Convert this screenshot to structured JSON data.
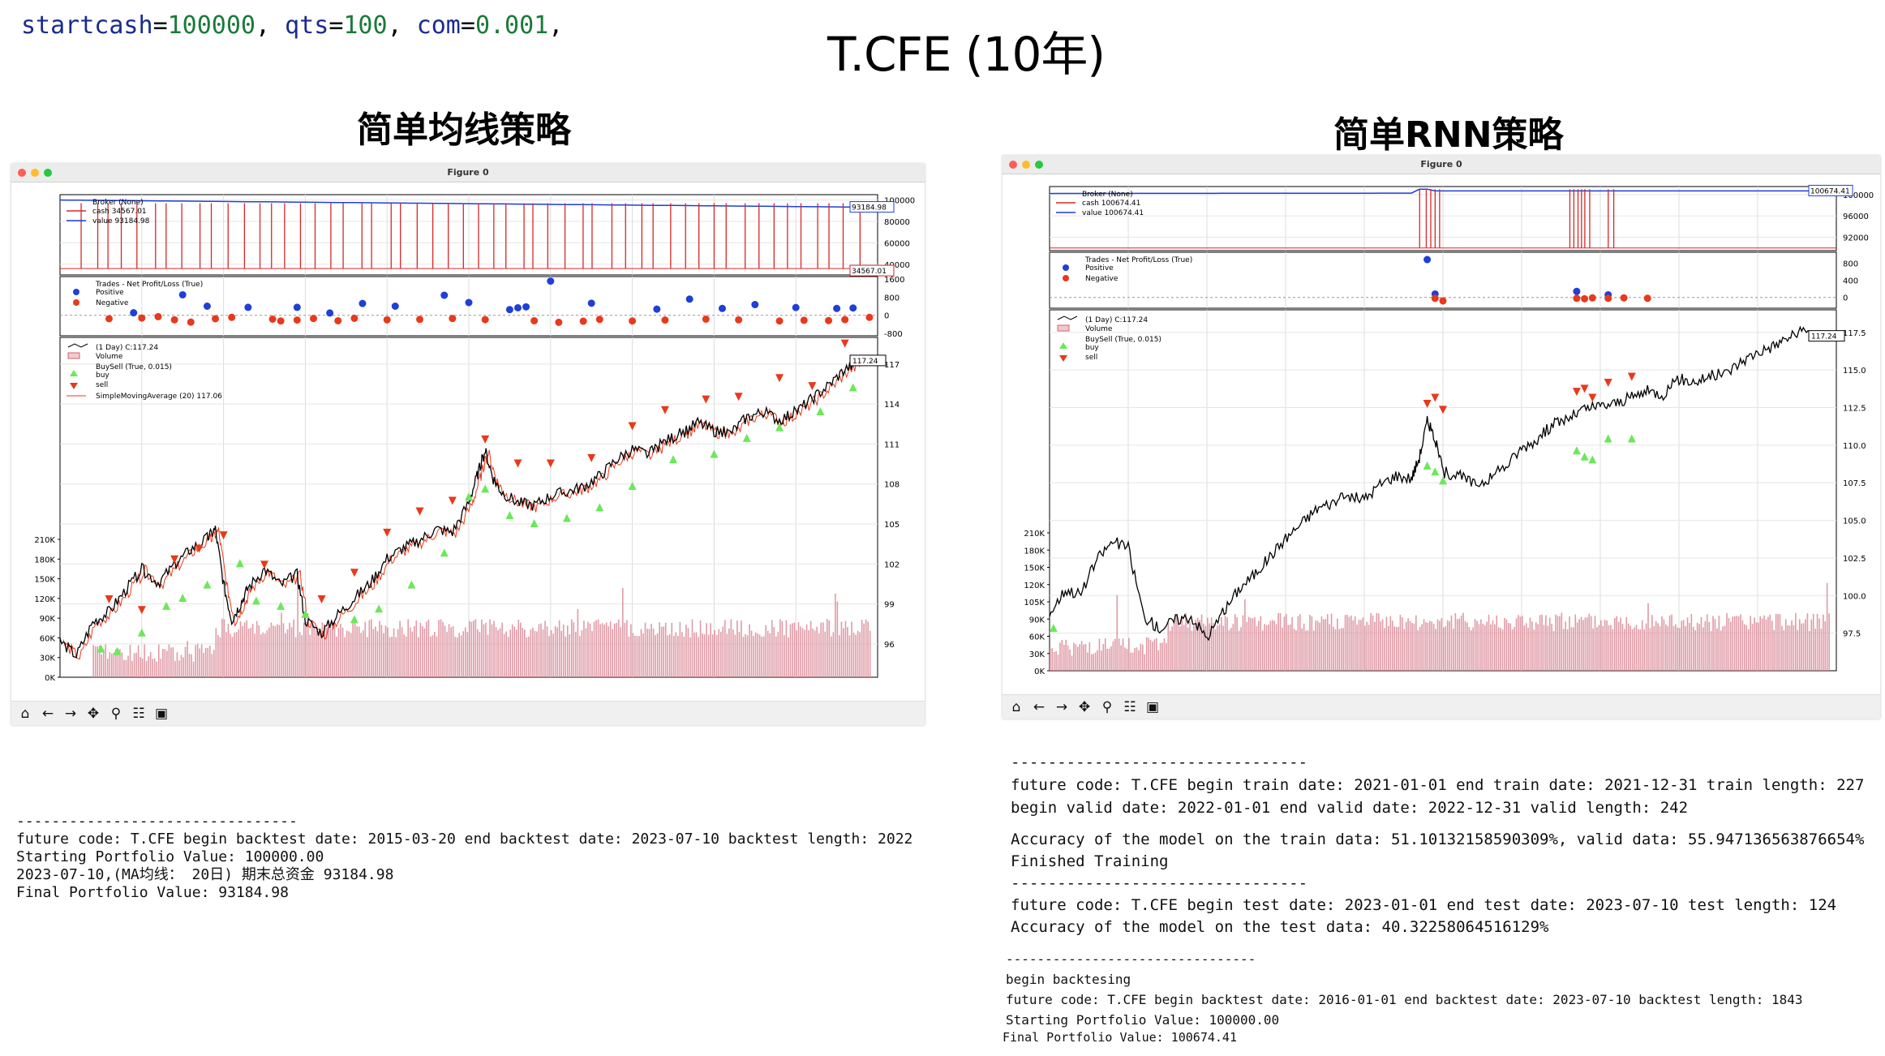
{
  "header": {
    "params": [
      {
        "key": "startcash",
        "value": "100000"
      },
      {
        "key": "qts",
        "value": "100"
      },
      {
        "key": "com",
        "value": "0.001"
      }
    ],
    "title": "T.CFE (10年)"
  },
  "left": {
    "heading": "简单均线策略",
    "window_title": "Figure 0",
    "console": [
      "--------------------------------",
      "future code: T.CFE begin backtest date: 2015-03-20 end backtest date: 2023-07-10 backtest length: 2022",
      "Starting Portfolio Value: 100000.00",
      "2023-07-10,(MA均线： 20日) 期末总资金 93184.98",
      "Final Portfolio Value: 93184.98"
    ]
  },
  "right": {
    "heading": "简单RNN策略",
    "window_title": "Figure 0",
    "console1": [
      "--------------------------------",
      "future code: T.CFE begin train date: 2021-01-01 end train date: 2021-12-31 train length: 227",
      "begin valid date: 2022-01-01 end valid date: 2022-12-31 valid length: 242"
    ],
    "console2": [
      "Accuracy of the model on the train data: 51.10132158590309%, valid data: 55.947136563876654%",
      "Finished Training",
      "--------------------------------",
      "future code: T.CFE begin test date: 2023-01-01 end test date: 2023-07-10 test length: 124",
      "Accuracy of the model on the test data: 40.32258064516129%"
    ],
    "console3": [
      "--------------------------------",
      "begin backtesing",
      "future code: T.CFE begin backtest date: 2016-01-01 end backtest date: 2023-07-10 backtest length: 1843",
      "Starting Portfolio Value: 100000.00"
    ],
    "console4": "Final Portfolio Value: 100674.41"
  },
  "toolbar_icons": [
    "home-icon",
    "back-arrow-icon",
    "forward-arrow-icon",
    "pan-icon",
    "zoom-icon",
    "configure-icon",
    "save-icon"
  ],
  "toolbar_glyphs": [
    "⌂",
    "←",
    "→",
    "✥",
    "⚲",
    "☷",
    "▣"
  ],
  "colors": {
    "cash": "#d62728",
    "value": "#1f3fd6",
    "positive": "#1f3fd6",
    "negative": "#e8391c",
    "buy": "#6be85a",
    "sell": "#e8391c",
    "price": "#000000",
    "volume": "#d98a96",
    "sma": "#e8391c"
  },
  "chart_data": [
    {
      "type": "line",
      "name": "left-backtrader-figure",
      "broker": {
        "legend": [
          "Broker (None)",
          "cash 34567.01",
          "value 93184.98"
        ],
        "yticks": [
          "100000",
          "80000",
          "60000",
          "40000"
        ],
        "ylim": [
          30000,
          105000
        ],
        "value_end_label": "93184.98",
        "cash_end_label": "34567.01"
      },
      "trades": {
        "legend": [
          "Trades - Net Profit/Loss (True)",
          "Positive",
          "Negative"
        ],
        "yticks": [
          "1600",
          "800",
          "0",
          "-800"
        ],
        "ylim": [
          -900,
          1700
        ],
        "positive": [
          [
            0.09,
            110
          ],
          [
            0.15,
            900
          ],
          [
            0.18,
            400
          ],
          [
            0.23,
            350
          ],
          [
            0.29,
            350
          ],
          [
            0.33,
            100
          ],
          [
            0.37,
            520
          ],
          [
            0.41,
            400
          ],
          [
            0.47,
            880
          ],
          [
            0.5,
            560
          ],
          [
            0.55,
            250
          ],
          [
            0.56,
            330
          ],
          [
            0.57,
            370
          ],
          [
            0.6,
            1500
          ],
          [
            0.65,
            530
          ],
          [
            0.73,
            270
          ],
          [
            0.77,
            710
          ],
          [
            0.81,
            300
          ],
          [
            0.85,
            470
          ],
          [
            0.9,
            340
          ],
          [
            0.95,
            300
          ],
          [
            0.97,
            320
          ]
        ],
        "negative": [
          [
            0.06,
            -150
          ],
          [
            0.1,
            -120
          ],
          [
            0.12,
            -60
          ],
          [
            0.14,
            -200
          ],
          [
            0.16,
            -300
          ],
          [
            0.19,
            -150
          ],
          [
            0.21,
            -90
          ],
          [
            0.26,
            -170
          ],
          [
            0.27,
            -250
          ],
          [
            0.29,
            -210
          ],
          [
            0.31,
            -140
          ],
          [
            0.34,
            -240
          ],
          [
            0.36,
            -130
          ],
          [
            0.4,
            -200
          ],
          [
            0.44,
            -180
          ],
          [
            0.48,
            -140
          ],
          [
            0.52,
            -190
          ],
          [
            0.58,
            -240
          ],
          [
            0.61,
            -310
          ],
          [
            0.64,
            -260
          ],
          [
            0.66,
            -180
          ],
          [
            0.7,
            -250
          ],
          [
            0.74,
            -210
          ],
          [
            0.79,
            -170
          ],
          [
            0.83,
            -200
          ],
          [
            0.88,
            -250
          ],
          [
            0.91,
            -220
          ],
          [
            0.94,
            -230
          ],
          [
            0.96,
            -190
          ],
          [
            0.99,
            -90
          ]
        ]
      },
      "price": {
        "legend": [
          "(1 Day) C:117.24",
          "Volume",
          "BuySell (True, 0.015)",
          "buy",
          "sell",
          "SimpleMovingAverage (20) 117.06"
        ],
        "yticks_right": [
          "117",
          "114",
          "111",
          "108",
          "105",
          "102",
          "99",
          "96"
        ],
        "yticks_left": [
          "210K",
          "180K",
          "150K",
          "120K",
          "90K",
          "60K",
          "30K",
          "0K"
        ],
        "ylim": [
          93.5,
          119
        ],
        "last_label": "117.24",
        "close_path": [
          [
            0,
            96.2
          ],
          [
            0.02,
            95.1
          ],
          [
            0.04,
            97.6
          ],
          [
            0.06,
            98.4
          ],
          [
            0.08,
            100
          ],
          [
            0.1,
            101.6
          ],
          [
            0.12,
            100.6
          ],
          [
            0.14,
            101.9
          ],
          [
            0.16,
            103.1
          ],
          [
            0.18,
            103.9
          ],
          [
            0.19,
            104.6
          ],
          [
            0.2,
            100.5
          ],
          [
            0.21,
            97.8
          ],
          [
            0.22,
            98.9
          ],
          [
            0.23,
            100.2
          ],
          [
            0.25,
            101.6
          ],
          [
            0.27,
            100.4
          ],
          [
            0.29,
            101.2
          ],
          [
            0.3,
            97.8
          ],
          [
            0.32,
            96.8
          ],
          [
            0.34,
            98.2
          ],
          [
            0.36,
            99.4
          ],
          [
            0.38,
            100.6
          ],
          [
            0.4,
            102.4
          ],
          [
            0.42,
            103.2
          ],
          [
            0.44,
            103.8
          ],
          [
            0.46,
            104.6
          ],
          [
            0.48,
            104.4
          ],
          [
            0.5,
            106.6
          ],
          [
            0.51,
            108.6
          ],
          [
            0.52,
            110.5
          ],
          [
            0.53,
            108.4
          ],
          [
            0.54,
            107.4
          ],
          [
            0.56,
            106.6
          ],
          [
            0.58,
            106.4
          ],
          [
            0.6,
            107.1
          ],
          [
            0.62,
            107.4
          ],
          [
            0.64,
            107.8
          ],
          [
            0.66,
            108.6
          ],
          [
            0.68,
            109.8
          ],
          [
            0.7,
            110.6
          ],
          [
            0.72,
            110.2
          ],
          [
            0.74,
            111.2
          ],
          [
            0.76,
            111.8
          ],
          [
            0.78,
            112.6
          ],
          [
            0.8,
            112
          ],
          [
            0.82,
            111.8
          ],
          [
            0.84,
            113
          ],
          [
            0.86,
            113.4
          ],
          [
            0.88,
            112.8
          ],
          [
            0.9,
            113.4
          ],
          [
            0.92,
            114.4
          ],
          [
            0.94,
            115.4
          ],
          [
            0.96,
            116.6
          ],
          [
            0.98,
            117.24
          ]
        ]
      }
    },
    {
      "type": "line",
      "name": "right-backtrader-figure",
      "broker": {
        "legend": [
          "Broker (None)",
          "cash 100674.41",
          "value 100674.41"
        ],
        "yticks": [
          "100000",
          "96000",
          "92000"
        ],
        "ylim": [
          89500,
          101500
        ],
        "value_end_label": "100674.41"
      },
      "trades": {
        "legend": [
          "Trades - Net Profit/Loss (True)",
          "Positive",
          "Negative"
        ],
        "yticks": [
          "800",
          "400",
          "0"
        ],
        "ylim": [
          -250,
          1050
        ],
        "positive": [
          [
            0.48,
            880
          ],
          [
            0.49,
            80
          ],
          [
            0.67,
            140
          ],
          [
            0.71,
            60
          ]
        ],
        "negative": [
          [
            0.49,
            -20
          ],
          [
            0.5,
            -80
          ],
          [
            0.67,
            -20
          ],
          [
            0.68,
            -30
          ],
          [
            0.69,
            -10
          ],
          [
            0.71,
            -20
          ],
          [
            0.73,
            -10
          ],
          [
            0.76,
            -20
          ]
        ]
      },
      "price": {
        "legend": [
          "(1 Day) C:117.24",
          "Volume",
          "BuySell (True, 0.015)",
          "buy",
          "sell"
        ],
        "yticks_right": [
          "117.5",
          "115.0",
          "112.5",
          "110.0",
          "107.5",
          "105.0",
          "102.5",
          "100.0",
          "97.5"
        ],
        "yticks_left": [
          "210K",
          "180K",
          "150K",
          "120K",
          "105K",
          "90K",
          "60K",
          "30K",
          "0K"
        ],
        "ylim": [
          95,
          119
        ],
        "last_label": "117.24",
        "close_path": [
          [
            0,
            98.8
          ],
          [
            0.02,
            100.4
          ],
          [
            0.04,
            100.1
          ],
          [
            0.06,
            102.4
          ],
          [
            0.08,
            103.6
          ],
          [
            0.1,
            103.2
          ],
          [
            0.12,
            98.6
          ],
          [
            0.14,
            97.8
          ],
          [
            0.16,
            98.4
          ],
          [
            0.18,
            98.6
          ],
          [
            0.2,
            97.2
          ],
          [
            0.22,
            98.8
          ],
          [
            0.24,
            100.4
          ],
          [
            0.26,
            101.4
          ],
          [
            0.28,
            102.6
          ],
          [
            0.3,
            103.8
          ],
          [
            0.32,
            104.8
          ],
          [
            0.34,
            105.8
          ],
          [
            0.36,
            106.2
          ],
          [
            0.38,
            106.6
          ],
          [
            0.4,
            106.4
          ],
          [
            0.42,
            107.4
          ],
          [
            0.44,
            108
          ],
          [
            0.46,
            107.8
          ],
          [
            0.47,
            109.2
          ],
          [
            0.48,
            111.6
          ],
          [
            0.49,
            110.4
          ],
          [
            0.5,
            108.2
          ],
          [
            0.52,
            108
          ],
          [
            0.54,
            107.4
          ],
          [
            0.56,
            107.8
          ],
          [
            0.58,
            108.6
          ],
          [
            0.6,
            109.8
          ],
          [
            0.62,
            110.4
          ],
          [
            0.64,
            111.4
          ],
          [
            0.66,
            111.8
          ],
          [
            0.68,
            112.4
          ],
          [
            0.7,
            112.6
          ],
          [
            0.72,
            112.8
          ],
          [
            0.74,
            113.2
          ],
          [
            0.76,
            113.6
          ],
          [
            0.78,
            113.4
          ],
          [
            0.8,
            114.4
          ],
          [
            0.82,
            114.2
          ],
          [
            0.84,
            114.6
          ],
          [
            0.86,
            114.8
          ],
          [
            0.88,
            115.6
          ],
          [
            0.9,
            116.2
          ],
          [
            0.92,
            116.6
          ],
          [
            0.94,
            117.2
          ],
          [
            0.96,
            117.6
          ],
          [
            0.98,
            117.24
          ]
        ]
      }
    }
  ]
}
